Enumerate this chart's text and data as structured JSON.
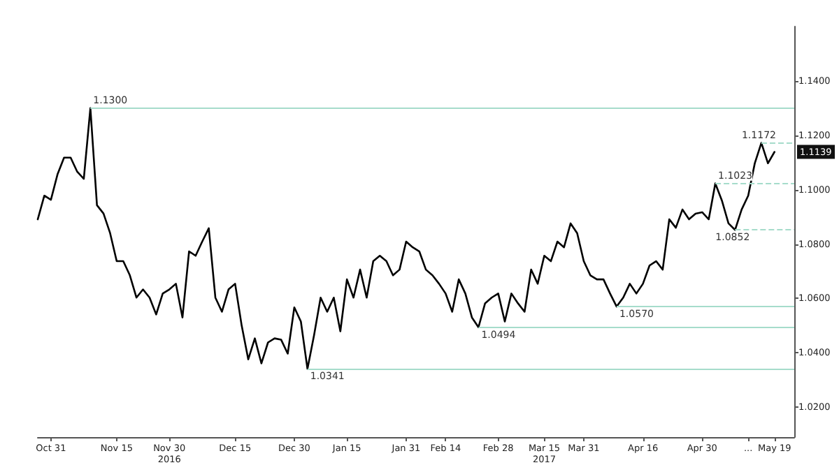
{
  "chart_data": {
    "type": "line",
    "categories": [
      null,
      null,
      "Oct 31",
      null,
      null,
      null,
      null,
      null,
      null,
      null,
      null,
      null,
      "Nov 15",
      null,
      null,
      null,
      null,
      null,
      null,
      null,
      "Nov 30\n2016",
      null,
      null,
      null,
      null,
      null,
      null,
      null,
      null,
      null,
      "Dec 15",
      null,
      null,
      null,
      null,
      null,
      null,
      null,
      null,
      "Dec 30",
      null,
      null,
      null,
      null,
      null,
      null,
      null,
      "Jan 15",
      null,
      null,
      null,
      null,
      null,
      null,
      null,
      null,
      "Jan 31",
      null,
      null,
      null,
      null,
      null,
      "Feb 14",
      null,
      null,
      null,
      null,
      null,
      null,
      null,
      "Feb 28",
      null,
      null,
      null,
      null,
      null,
      null,
      "Mar 15\n2017",
      null,
      null,
      null,
      null,
      null,
      "Mar 31",
      null,
      null,
      null,
      null,
      null,
      null,
      null,
      null,
      "Apr 16",
      null,
      null,
      null,
      null,
      null,
      null,
      null,
      null,
      "Apr 30",
      null,
      null,
      null,
      null,
      null,
      null,
      "...",
      null,
      null,
      null,
      "May 19",
      null,
      null,
      null
    ],
    "series": [
      {
        "color": "#000000",
        "values": [
          1.0891,
          1.0978,
          1.0963,
          1.1056,
          1.1118,
          1.1118,
          1.1066,
          1.104,
          1.13,
          1.0943,
          1.0912,
          1.084,
          1.0737,
          1.0737,
          1.0685,
          1.0603,
          1.0633,
          1.0603,
          1.0541,
          1.0618,
          1.0633,
          1.0654,
          1.053,
          1.0773,
          1.0757,
          1.0809,
          1.0858,
          1.0603,
          1.0551,
          1.0633,
          1.0654,
          1.05,
          1.0376,
          1.0453,
          1.0361,
          1.0438,
          1.0453,
          1.0448,
          1.0397,
          1.0567,
          1.0515,
          1.0341,
          1.0464,
          1.0603,
          1.0551,
          1.0603,
          1.0479,
          1.067,
          1.0603,
          1.0706,
          1.0603,
          1.0737,
          1.0757,
          1.0737,
          1.0685,
          1.0706,
          1.0809,
          1.0788,
          1.0773,
          1.0706,
          1.0685,
          1.0654,
          1.0618,
          1.0551,
          1.067,
          1.0618,
          1.053,
          1.0494,
          1.0582,
          1.0603,
          1.0618,
          1.0515,
          1.0618,
          1.0582,
          1.0551,
          1.0706,
          1.0654,
          1.0757,
          1.0737,
          1.0809,
          1.0788,
          1.0876,
          1.084,
          1.0737,
          1.0685,
          1.067,
          1.067,
          1.0618,
          1.057,
          1.0603,
          1.0654,
          1.0618,
          1.0654,
          1.0721,
          1.0737,
          1.0706,
          1.0891,
          1.086,
          1.0927,
          1.0891,
          1.0912,
          1.0917,
          1.0891,
          1.1023,
          1.096,
          1.0876,
          1.0852,
          1.0927,
          1.0978,
          1.1097,
          1.1172,
          1.1097,
          1.1139,
          null,
          null,
          null
        ]
      }
    ],
    "ylim": [
      1.009,
      1.16
    ],
    "yticks": [
      {
        "value": 1.02,
        "label": "1.0200"
      },
      {
        "value": 1.04,
        "label": "1.0400"
      },
      {
        "value": 1.06,
        "label": "1.0600"
      },
      {
        "value": 1.08,
        "label": "1.0800"
      },
      {
        "value": 1.1,
        "label": "1.1000"
      },
      {
        "value": 1.12,
        "label": "1.1200"
      },
      {
        "value": 1.14,
        "label": "1.1400"
      }
    ],
    "ref_lines": [
      {
        "axis": "y",
        "value": 1.13,
        "label": "1.1300",
        "color": "#a6dccb"
      },
      {
        "axis": "y",
        "value": 1.0341,
        "label": "1.0341",
        "color": "#a6dccb"
      },
      {
        "axis": "y",
        "value": 1.0494,
        "label": "1.0494",
        "color": "#a6dccb"
      },
      {
        "axis": "y",
        "value": 1.057,
        "label": "1.0570",
        "color": "#a6dccb"
      },
      {
        "axis": "y",
        "value": 1.0852,
        "label": "1.0852",
        "color": "#a6dccb",
        "line_style": "dashed"
      },
      {
        "axis": "y",
        "value": 1.1023,
        "label": "1.1023",
        "color": "#a6dccb",
        "line_style": "dashed"
      },
      {
        "axis": "y",
        "value": 1.1172,
        "label": "1.1172",
        "color": "#a6dccb",
        "line_style": "dashed"
      }
    ],
    "annotations": [
      {
        "text": "1.1139",
        "y": 1.1139
      }
    ],
    "grid": false,
    "marker": "none",
    "line_style": "solid"
  }
}
